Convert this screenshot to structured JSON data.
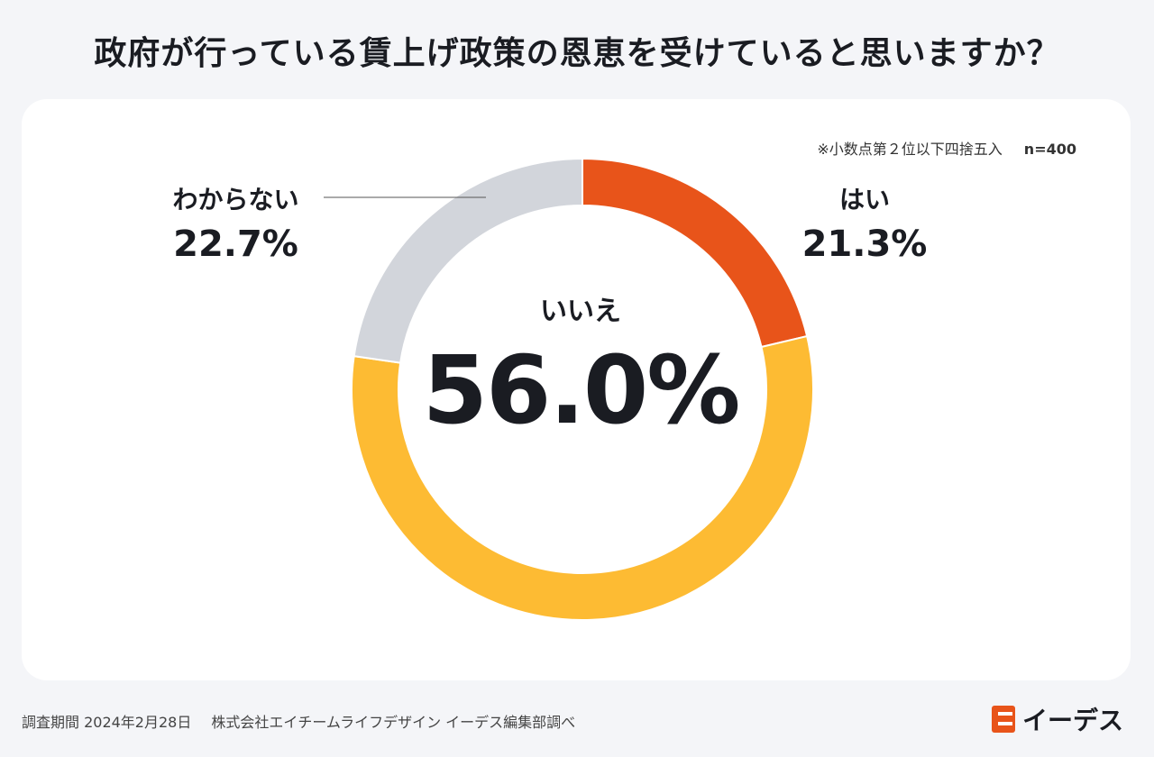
{
  "title": "政府が行っている賃上げ政策の恩恵を受けていると思いますか？",
  "note": "※小数点第２位以下四捨五入",
  "sample": "n=400",
  "footer": {
    "period": "調査期間 2024年2月28日",
    "company": "株式会社エイチームライフデザイン イーデス編集部調べ"
  },
  "logo": {
    "text": "イーデス",
    "color": "#e8541a"
  },
  "chart_data": {
    "type": "pie",
    "donut": true,
    "categories": [
      "はい",
      "いいえ",
      "わからない"
    ],
    "values": [
      21.3,
      56.0,
      22.7
    ],
    "value_labels": [
      "21.3%",
      "56.0%",
      "22.7%"
    ],
    "colors": [
      "#e8541a",
      "#fdbb33",
      "#d2d5db"
    ],
    "start": "top",
    "direction": "clockwise"
  }
}
